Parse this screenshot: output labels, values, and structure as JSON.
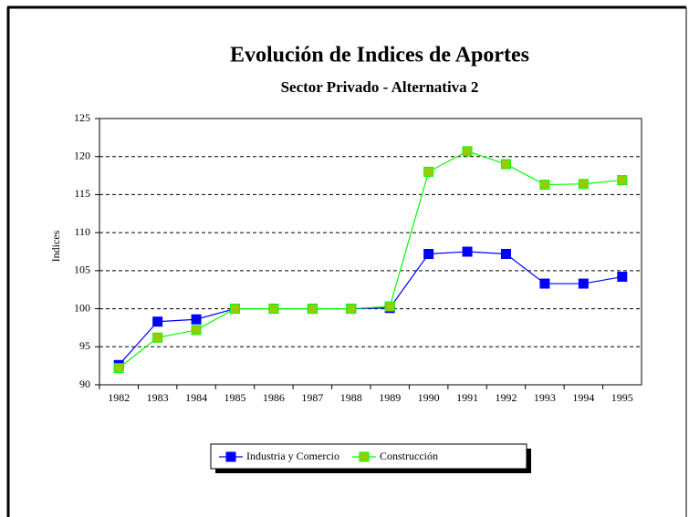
{
  "chart_data": {
    "type": "line",
    "title": "Evolución de Indices de Aportes",
    "subtitle": "Sector Privado - Alternativa 2",
    "ylabel": "Indices",
    "categories": [
      "1982",
      "1983",
      "1984",
      "1985",
      "1986",
      "1987",
      "1988",
      "1989",
      "1990",
      "1991",
      "1992",
      "1993",
      "1994",
      "1995"
    ],
    "series": [
      {
        "name": "Industria y Comercio",
        "color": "#0000ff",
        "marker_color": "#0000ff",
        "values": [
          92.6,
          98.3,
          98.6,
          100,
          100,
          100,
          100,
          100.1,
          107.2,
          107.5,
          107.2,
          103.3,
          103.3,
          104.2
        ]
      },
      {
        "name": "Construcción",
        "color": "#00ff00",
        "marker_color": "#99cc00",
        "values": [
          92.2,
          96.2,
          97.2,
          100,
          100,
          100,
          100,
          100.3,
          118,
          120.7,
          119,
          116.3,
          116.4,
          116.9
        ]
      }
    ],
    "ylim": [
      90,
      125
    ],
    "yticks": [
      90,
      95,
      100,
      105,
      110,
      115,
      120,
      125
    ],
    "grid": true,
    "legend": "bottom"
  }
}
